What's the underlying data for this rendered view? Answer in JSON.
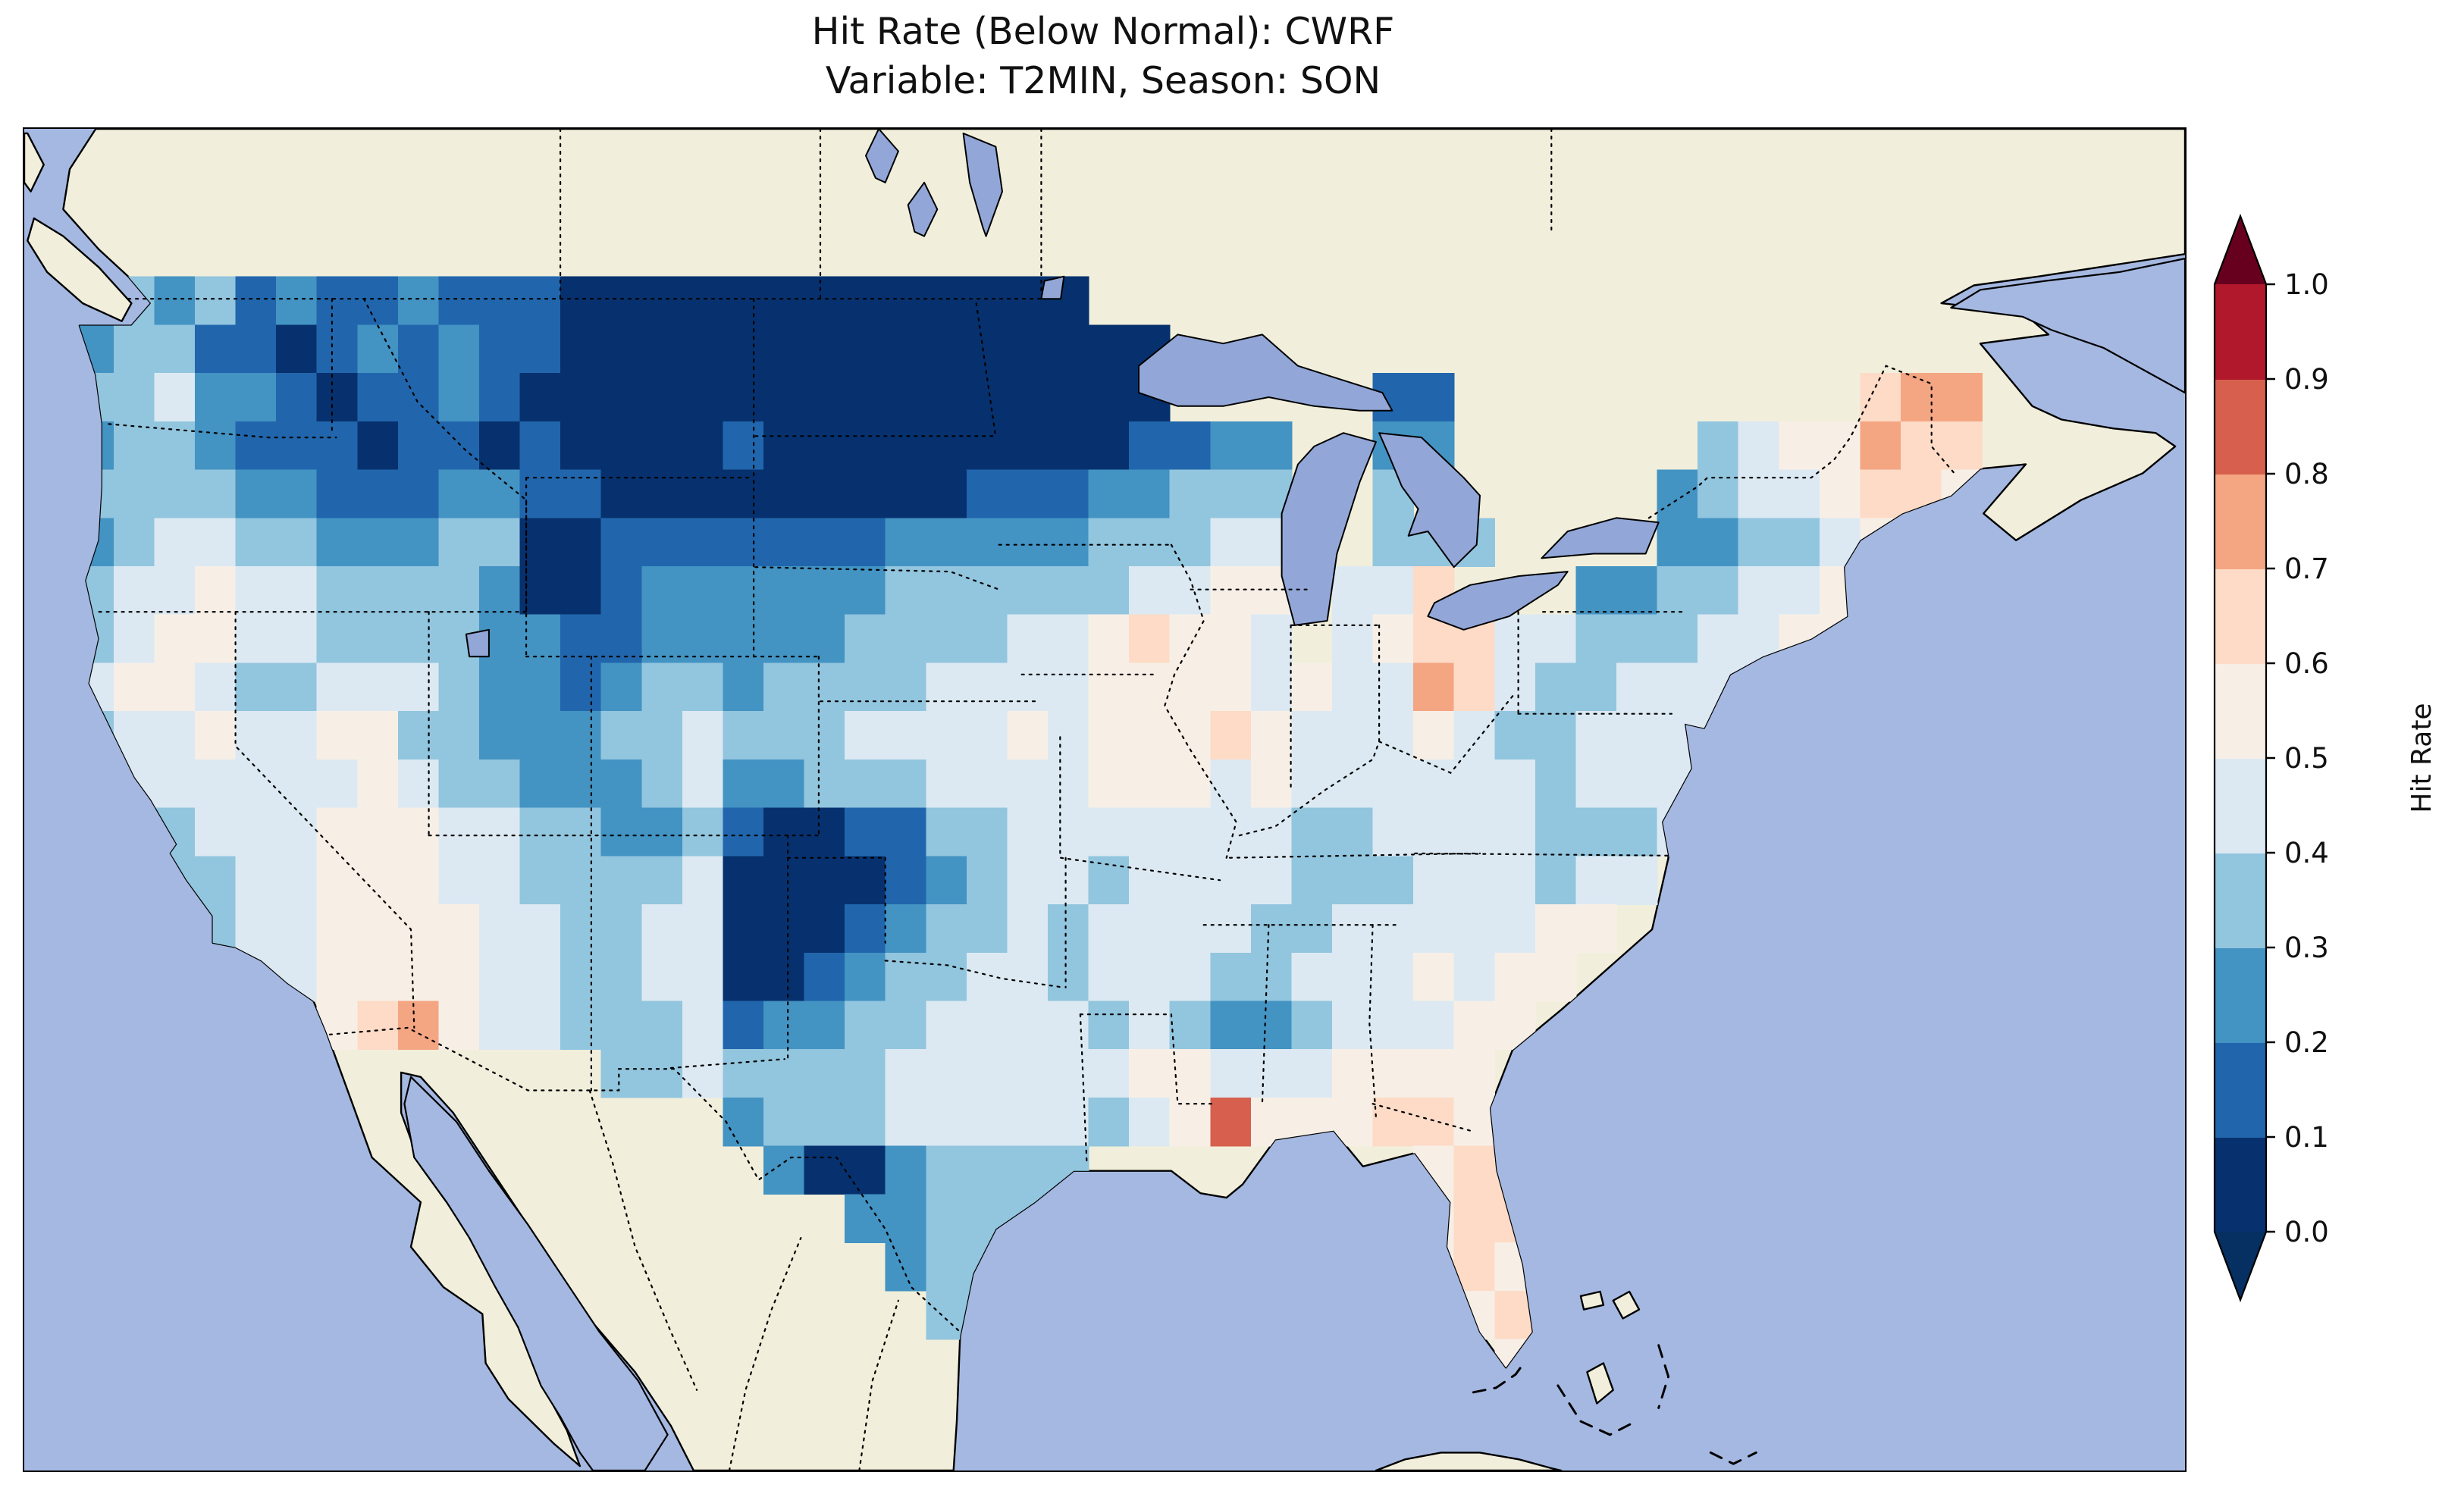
{
  "title": {
    "line1": "Hit Rate (Below Normal): CWRF",
    "line2": "Variable: T2MIN, Season: SON"
  },
  "chart_data": {
    "type": "heatmap",
    "title": "Hit Rate (Below Normal): CWRF",
    "subtitle": "Variable: T2MIN, Season: SON",
    "model": "CWRF",
    "variable": "T2MIN",
    "season": "SON",
    "category": "Below Normal",
    "colorbar": {
      "label": "Hit Rate",
      "orientation": "vertical-right",
      "ticks": [
        "0.0",
        "0.1",
        "0.2",
        "0.3",
        "0.4",
        "0.5",
        "0.6",
        "0.7",
        "0.8",
        "0.9",
        "1.0"
      ],
      "bin_colors": [
        "#07316e",
        "#2166ac",
        "#4393c3",
        "#92c5de",
        "#dce9f2",
        "#f7efe6",
        "#fddbc7",
        "#f4a582",
        "#d6604d",
        "#b2182b"
      ],
      "under_color": "#053061",
      "over_color": "#67001f"
    },
    "map": {
      "lon_min": -126.5,
      "lon_max": -60.0,
      "lat_min": 22.8,
      "lat_max": 52.8,
      "ocean_color": "#a5b8e1",
      "land_color": "#f1efdb",
      "lake_color": "#92a7d8"
    },
    "grid": {
      "origin_lon": -125.0,
      "origin_lat": 49.5,
      "dlon": 1.25,
      "dlat": 1.08,
      "value_bins": [
        0.05,
        0.15,
        0.25,
        0.35,
        0.45,
        0.55,
        0.65,
        0.75,
        0.85,
        0.95
      ],
      "encoding": "Each row string covers longitudes west-to-east starting at origin_lon, rows run north-to-south from origin_lat. Digit d means hit-rate in bin [d*0.1, d*0.1+0.1] (see value_bins for centers, bin_colors for fill). '.' or missing char = no data (outside CONUS).",
      "rows": [
        "3323121121110000000000000",
        "233110121211000000000000000",
        "334221011210000000000000000.....11..........677",
        "233211101101000010000000001122..22......3455766",
        "333322111221100000000011122333..3......23445665",
        "234433222330011111112222233344..333....223345",
        "344544333320012222223333334455.446...223344555",
        "345544333322112222233334456554.45664433344554",
        "4554334443221233233334444555545447643344444",
        "344544553322233433344445455565444543344444",
        "34444445433222342233344445554544444434444",
        "2334445554433223100113344444443344443334",
        "..3344555443333400001234434444333444344",
        "...34455554433440001233434444334444455",
        "....445555443344001233443444334445455",
        "......567544333412233444434322344455",
        ".............3343333444444554445555",
        "................2333444443458555665",
        ".................20023333........5665",
        "...................22333.........5665",
        "....................233..........5655",
        ".....................33...........565.5.5.5",
        "...................................55.5.5",
        ""
      ]
    }
  }
}
